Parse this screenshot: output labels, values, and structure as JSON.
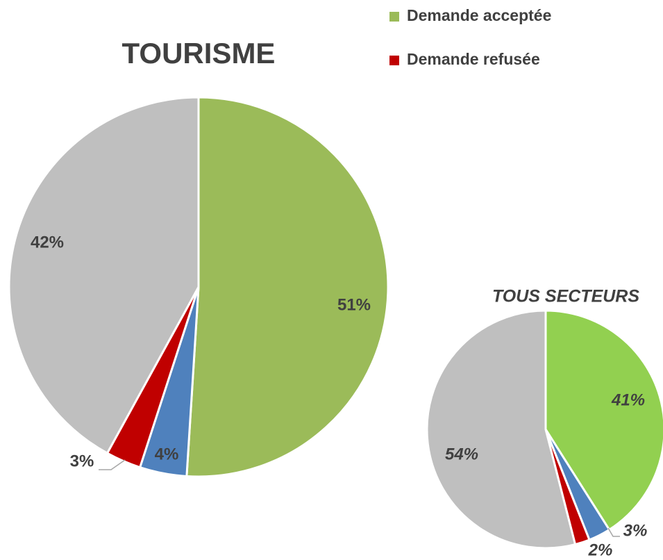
{
  "chart_data": [
    {
      "type": "pie",
      "title": "TOURISME",
      "categories": [
        "Demande acceptée",
        null,
        "Demande refusée",
        null
      ],
      "values": [
        51,
        4,
        3,
        42
      ],
      "value_labels": [
        "51%",
        "4%",
        "3%",
        "42%"
      ],
      "colors": [
        "#9bbb59",
        "#4f81bd",
        "#c00000",
        "#bfbfbf"
      ],
      "legend": "top-right"
    },
    {
      "type": "pie",
      "title": "TOUS SECTEURS",
      "values": [
        41,
        3,
        2,
        54
      ],
      "value_labels": [
        "41%",
        "3%",
        "2%",
        "54%"
      ],
      "colors": [
        "#92d050",
        "#4f81bd",
        "#c00000",
        "#bfbfbf"
      ]
    }
  ]
}
